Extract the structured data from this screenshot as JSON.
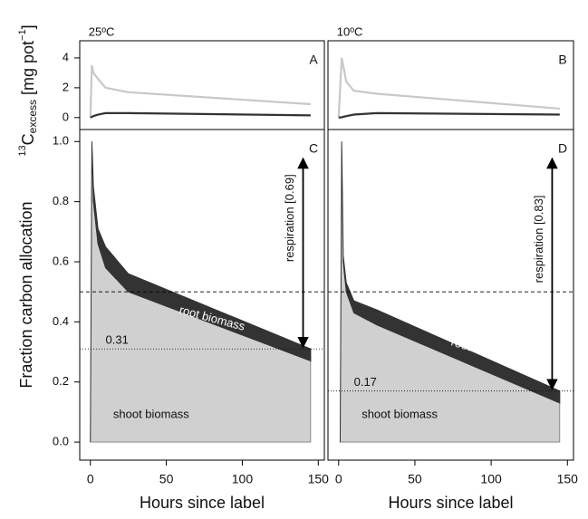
{
  "chart_data": [
    {
      "type": "line",
      "title": "25ºC",
      "panel_label": "A",
      "ylabel": [
        "13",
        "C",
        "excess",
        " [mg pot",
        "−1",
        "]"
      ],
      "x": [
        0,
        1,
        2,
        5,
        10,
        25,
        145
      ],
      "series": [
        {
          "color": "#c8c8c8",
          "values": [
            0,
            3.5,
            3.0,
            2.6,
            2.0,
            1.7,
            0.9
          ]
        },
        {
          "color": "#333333",
          "values": [
            0,
            0.05,
            0.1,
            0.2,
            0.3,
            0.3,
            0.15
          ]
        }
      ],
      "xlim": [
        -7,
        154
      ],
      "ylim": [
        -0.8,
        5.15
      ],
      "yticks": [
        0,
        2,
        4
      ]
    },
    {
      "type": "line",
      "title": "10ºC",
      "panel_label": "B",
      "x": [
        0,
        2,
        3,
        5,
        10,
        25,
        145
      ],
      "series": [
        {
          "color": "#c8c8c8",
          "values": [
            0,
            4.0,
            3.5,
            2.4,
            1.8,
            1.6,
            0.6
          ]
        },
        {
          "color": "#333333",
          "values": [
            0,
            0.02,
            0.05,
            0.1,
            0.2,
            0.3,
            0.2
          ]
        }
      ],
      "xlim": [
        -7,
        154
      ],
      "ylim": [
        -0.8,
        5.15
      ]
    },
    {
      "type": "area",
      "panel_label": "C",
      "ylabel": "Fraction carbon allocation",
      "xlabel": "Hours since label",
      "x": [
        0,
        1,
        2,
        5,
        10,
        25,
        145
      ],
      "series": [
        {
          "name": "shoot biomass",
          "color": "#d0d0d0",
          "values": [
            0,
            1.0,
            0.8,
            0.66,
            0.58,
            0.5,
            0.27
          ]
        },
        {
          "name": "root biomass",
          "color": "#333333",
          "values": [
            0,
            0,
            0.05,
            0.05,
            0.07,
            0.06,
            0.04
          ]
        }
      ],
      "dashed_line": 0.5,
      "labeled_line": 0.31,
      "annotation": "respiration [0.69]",
      "xlim": [
        -7,
        154
      ],
      "ylim": [
        -0.06,
        1.04
      ],
      "xticks": [
        0,
        50,
        100,
        150
      ],
      "yticks": [
        {
          "value": 0,
          "label": "0.0"
        },
        0.2,
        0.4,
        0.6,
        0.8,
        {
          "value": 1,
          "label": "1.0"
        }
      ]
    },
    {
      "type": "area",
      "panel_label": "D",
      "xlabel": "Hours since label",
      "x": [
        1,
        2,
        3,
        5,
        10,
        25,
        145
      ],
      "series": [
        {
          "name": "shoot biomass",
          "color": "#d0d0d0",
          "values": [
            0,
            1.0,
            0.6,
            0.5,
            0.43,
            0.39,
            0.13
          ]
        },
        {
          "name": "root biomass",
          "color": "#333333",
          "values": [
            0,
            0,
            0.02,
            0.03,
            0.04,
            0.05,
            0.04
          ]
        }
      ],
      "dashed_line": 0.5,
      "labeled_line": 0.17,
      "annotation": "respiration [0.83]",
      "xlim": [
        -7,
        154
      ],
      "ylim": [
        -0.06,
        1.04
      ],
      "xticks": [
        0,
        50,
        100,
        150
      ]
    }
  ]
}
